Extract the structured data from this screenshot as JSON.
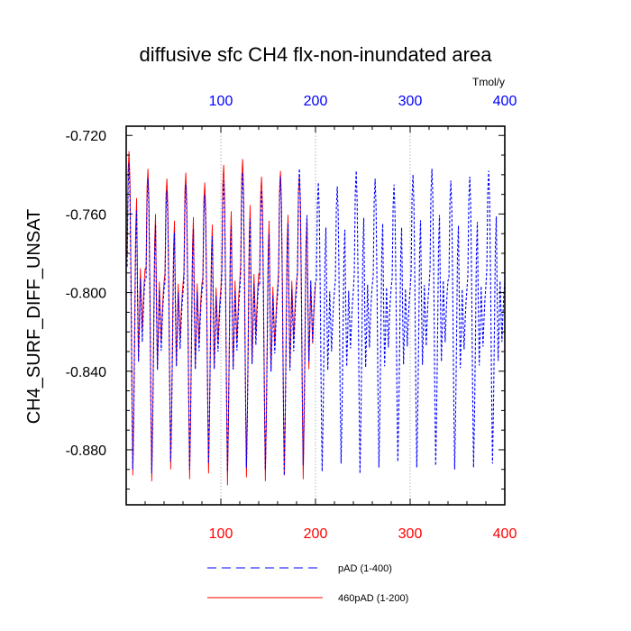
{
  "chart_data": {
    "type": "line",
    "title": "diffusive sfc CH4 flx-non-inundated area",
    "ylabel": "CH4_SURF_DIFF_UNSAT",
    "units_label": "Tmol/y",
    "xlim": [
      0,
      400
    ],
    "ylim": [
      -0.908,
      -0.7153
    ],
    "y_ticks": [
      "-0.720",
      "-0.760",
      "-0.800",
      "-0.840",
      "-0.880"
    ],
    "y_tick_values": [
      -0.72,
      -0.76,
      -0.8,
      -0.84,
      -0.88
    ],
    "x_ticks_bottom": [
      "100",
      "200",
      "300",
      "400"
    ],
    "x_tick_values": [
      100,
      200,
      300,
      400
    ],
    "x_ticks_top": [
      "100",
      "200",
      "300",
      "400"
    ],
    "top_axis_color": "#0000ff",
    "bottom_axis_color": "#ff0000",
    "grid": "vertical dotted at 100, 200, 300",
    "series": [
      {
        "name": "pAD (1-400)",
        "color": "#0000ff",
        "style": "dashed",
        "cycle_length": 20,
        "cycle_shape": [
          -0.784,
          -0.744,
          -0.732,
          -0.748,
          -0.79,
          -0.845,
          -0.886,
          -0.858,
          -0.818,
          -0.772,
          -0.756,
          -0.8,
          -0.832,
          -0.814,
          -0.79,
          -0.806,
          -0.822,
          -0.808,
          -0.797,
          -0.79
        ],
        "cycle_peaks": [
          -0.734,
          -0.742,
          -0.748,
          -0.745,
          -0.75,
          -0.743,
          -0.739,
          -0.748,
          -0.741,
          -0.737,
          -0.744,
          -0.746,
          -0.738,
          -0.742,
          -0.745,
          -0.74,
          -0.737,
          -0.743,
          -0.741,
          -0.738
        ],
        "cycle_troughs": [
          -0.89,
          -0.892,
          -0.886,
          -0.89,
          -0.887,
          -0.891,
          -0.889,
          -0.89,
          -0.893,
          -0.888,
          -0.891,
          -0.887,
          -0.892,
          -0.889,
          -0.886,
          -0.889,
          -0.888,
          -0.89,
          -0.889,
          -0.887
        ]
      },
      {
        "name": "460pAD (1-200)",
        "color": "#ff0000",
        "style": "solid",
        "x_range": [
          1,
          200
        ],
        "cycle_length": 20,
        "cycle_shape": [
          -0.782,
          -0.738,
          -0.728,
          -0.744,
          -0.79,
          -0.848,
          -0.894,
          -0.862,
          -0.816,
          -0.768,
          -0.752,
          -0.798,
          -0.834,
          -0.812,
          -0.788,
          -0.804,
          -0.82,
          -0.806,
          -0.795,
          -0.788
        ],
        "cycle_peaks": [
          -0.728,
          -0.737,
          -0.742,
          -0.739,
          -0.744,
          -0.735,
          -0.732,
          -0.741,
          -0.738,
          -0.74
        ],
        "cycle_troughs": [
          -0.893,
          -0.896,
          -0.89,
          -0.895,
          -0.892,
          -0.898,
          -0.894,
          -0.896,
          -0.893,
          -0.895
        ]
      }
    ]
  }
}
